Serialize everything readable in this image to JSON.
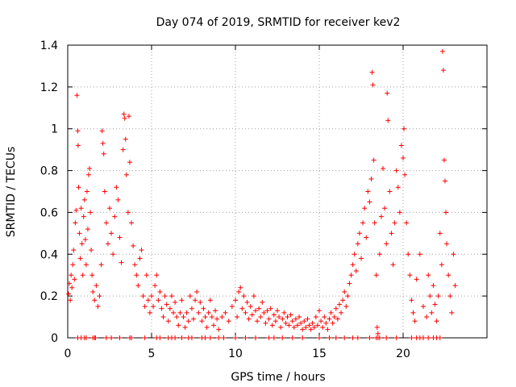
{
  "chart_data": {
    "type": "scatter",
    "title": "Day 074 of 2019, SRMTID for receiver kev2",
    "xlabel": "GPS time / hours",
    "ylabel": "SRMTID / TECUs",
    "xlim": [
      0,
      25
    ],
    "ylim": [
      0,
      1.4
    ],
    "xticks": [
      0,
      5,
      10,
      15,
      20
    ],
    "yticks": [
      0,
      0.2,
      0.4,
      0.6,
      0.8,
      1,
      1.2,
      1.4
    ],
    "xtick_labels": [
      "0",
      "5",
      "10",
      "15",
      "20"
    ],
    "ytick_labels": [
      "0",
      "0.2",
      "0.4",
      "0.6",
      "0.8",
      "1",
      "1.2",
      "1.4"
    ],
    "grid": true,
    "marker": "+",
    "colors": {
      "marker": "#ff0000",
      "grid": "#a0a0a0",
      "axis": "#000000"
    },
    "series": [
      {
        "name": "SRMTID",
        "points": [
          [
            0.05,
            0.21
          ],
          [
            0.1,
            0.26
          ],
          [
            0.15,
            0.18
          ],
          [
            0.2,
            0.3
          ],
          [
            0.25,
            0.24
          ],
          [
            0.3,
            0.35
          ],
          [
            0.35,
            0.42
          ],
          [
            0.4,
            0.28
          ],
          [
            0.45,
            0.55
          ],
          [
            0.5,
            0.61
          ],
          [
            0.55,
            1.16
          ],
          [
            0.6,
            0.99
          ],
          [
            0.62,
            0.92
          ],
          [
            0.65,
            0.72
          ],
          [
            0.7,
            0.5
          ],
          [
            0.75,
            0.38
          ],
          [
            0.8,
            0.62
          ],
          [
            0.85,
            0.45
          ],
          [
            0.9,
            0.3
          ],
          [
            0.95,
            0.58
          ],
          [
            1.0,
            0.66
          ],
          [
            1.05,
            0.47
          ],
          [
            1.1,
            0.35
          ],
          [
            1.15,
            0.7
          ],
          [
            1.2,
            0.52
          ],
          [
            1.25,
            0.78
          ],
          [
            1.3,
            0.81
          ],
          [
            1.35,
            0.6
          ],
          [
            1.4,
            0.42
          ],
          [
            1.45,
            0.3
          ],
          [
            1.5,
            0.22
          ],
          [
            1.6,
            0.18
          ],
          [
            1.7,
            0.25
          ],
          [
            1.8,
            0.15
          ],
          [
            1.9,
            0.2
          ],
          [
            2.0,
            0.35
          ],
          [
            2.05,
            0.99
          ],
          [
            2.1,
            0.93
          ],
          [
            2.15,
            0.88
          ],
          [
            2.2,
            0.7
          ],
          [
            2.3,
            0.55
          ],
          [
            2.4,
            0.45
          ],
          [
            2.5,
            0.62
          ],
          [
            2.6,
            0.5
          ],
          [
            2.7,
            0.4
          ],
          [
            2.8,
            0.58
          ],
          [
            2.9,
            0.72
          ],
          [
            3.0,
            0.66
          ],
          [
            3.1,
            0.48
          ],
          [
            3.2,
            0.36
          ],
          [
            3.3,
            0.9
          ],
          [
            3.35,
            1.07
          ],
          [
            3.4,
            1.05
          ],
          [
            3.45,
            0.95
          ],
          [
            3.5,
            0.78
          ],
          [
            3.6,
            0.6
          ],
          [
            3.65,
            1.06
          ],
          [
            3.7,
            0.84
          ],
          [
            3.8,
            0.55
          ],
          [
            3.9,
            0.44
          ],
          [
            4.0,
            0.35
          ],
          [
            4.1,
            0.3
          ],
          [
            4.2,
            0.25
          ],
          [
            4.3,
            0.38
          ],
          [
            4.4,
            0.42
          ],
          [
            4.5,
            0.2
          ],
          [
            4.6,
            0.15
          ],
          [
            4.7,
            0.3
          ],
          [
            4.8,
            0.18
          ],
          [
            4.9,
            0.12
          ],
          [
            5.0,
            0.2
          ],
          [
            5.1,
            0.15
          ],
          [
            5.2,
            0.25
          ],
          [
            5.3,
            0.3
          ],
          [
            5.4,
            0.18
          ],
          [
            5.5,
            0.22
          ],
          [
            5.6,
            0.14
          ],
          [
            5.7,
            0.1
          ],
          [
            5.8,
            0.2
          ],
          [
            5.9,
            0.16
          ],
          [
            6.0,
            0.08
          ],
          [
            6.1,
            0.14
          ],
          [
            6.2,
            0.2
          ],
          [
            6.3,
            0.12
          ],
          [
            6.4,
            0.17
          ],
          [
            6.5,
            0.1
          ],
          [
            6.6,
            0.06
          ],
          [
            6.7,
            0.12
          ],
          [
            6.8,
            0.18
          ],
          [
            6.9,
            0.1
          ],
          [
            7.0,
            0.05
          ],
          [
            7.1,
            0.12
          ],
          [
            7.2,
            0.08
          ],
          [
            7.3,
            0.2
          ],
          [
            7.4,
            0.14
          ],
          [
            7.5,
            0.09
          ],
          [
            7.6,
            0.18
          ],
          [
            7.7,
            0.22
          ],
          [
            7.8,
            0.12
          ],
          [
            7.9,
            0.17
          ],
          [
            8.0,
            0.08
          ],
          [
            8.1,
            0.14
          ],
          [
            8.2,
            0.1
          ],
          [
            8.3,
            0.05
          ],
          [
            8.4,
            0.12
          ],
          [
            8.5,
            0.18
          ],
          [
            8.6,
            0.1
          ],
          [
            8.7,
            0.06
          ],
          [
            8.8,
            0.13
          ],
          [
            8.9,
            0.09
          ],
          [
            9.0,
            0.04
          ],
          [
            9.2,
            0.1
          ],
          [
            9.4,
            0.12
          ],
          [
            9.6,
            0.08
          ],
          [
            9.8,
            0.15
          ],
          [
            10.0,
            0.18
          ],
          [
            10.1,
            0.1
          ],
          [
            10.2,
            0.22
          ],
          [
            10.3,
            0.24
          ],
          [
            10.4,
            0.14
          ],
          [
            10.5,
            0.2
          ],
          [
            10.6,
            0.12
          ],
          [
            10.7,
            0.17
          ],
          [
            10.8,
            0.09
          ],
          [
            10.9,
            0.15
          ],
          [
            11.0,
            0.11
          ],
          [
            11.1,
            0.2
          ],
          [
            11.2,
            0.13
          ],
          [
            11.3,
            0.08
          ],
          [
            11.4,
            0.14
          ],
          [
            11.5,
            0.1
          ],
          [
            11.6,
            0.17
          ],
          [
            11.7,
            0.12
          ],
          [
            11.8,
            0.07
          ],
          [
            11.9,
            0.13
          ],
          [
            12.0,
            0.09
          ],
          [
            12.1,
            0.14
          ],
          [
            12.2,
            0.06
          ],
          [
            12.3,
            0.11
          ],
          [
            12.4,
            0.08
          ],
          [
            12.5,
            0.13
          ],
          [
            12.6,
            0.1
          ],
          [
            12.7,
            0.05
          ],
          [
            12.8,
            0.09
          ],
          [
            12.9,
            0.12
          ],
          [
            13.0,
            0.07
          ],
          [
            13.1,
            0.1
          ],
          [
            13.2,
            0.06
          ],
          [
            13.3,
            0.11
          ],
          [
            13.4,
            0.08
          ],
          [
            13.5,
            0.05
          ],
          [
            13.6,
            0.09
          ],
          [
            13.7,
            0.06
          ],
          [
            13.8,
            0.1
          ],
          [
            13.9,
            0.07
          ],
          [
            14.0,
            0.04
          ],
          [
            14.1,
            0.08
          ],
          [
            14.2,
            0.05
          ],
          [
            14.3,
            0.09
          ],
          [
            14.4,
            0.06
          ],
          [
            14.5,
            0.04
          ],
          [
            14.6,
            0.07
          ],
          [
            14.7,
            0.05
          ],
          [
            14.8,
            0.1
          ],
          [
            14.9,
            0.06
          ],
          [
            15.0,
            0.13
          ],
          [
            15.1,
            0.08
          ],
          [
            15.2,
            0.05
          ],
          [
            15.3,
            0.1
          ],
          [
            15.4,
            0.07
          ],
          [
            15.5,
            0.04
          ],
          [
            15.6,
            0.09
          ],
          [
            15.7,
            0.12
          ],
          [
            15.8,
            0.07
          ],
          [
            15.9,
            0.1
          ],
          [
            16.0,
            0.14
          ],
          [
            16.1,
            0.09
          ],
          [
            16.2,
            0.16
          ],
          [
            16.3,
            0.12
          ],
          [
            16.4,
            0.18
          ],
          [
            16.5,
            0.22
          ],
          [
            16.6,
            0.15
          ],
          [
            16.7,
            0.2
          ],
          [
            16.8,
            0.26
          ],
          [
            16.9,
            0.3
          ],
          [
            17.0,
            0.35
          ],
          [
            17.1,
            0.4
          ],
          [
            17.2,
            0.32
          ],
          [
            17.3,
            0.45
          ],
          [
            17.4,
            0.5
          ],
          [
            17.5,
            0.38
          ],
          [
            17.6,
            0.55
          ],
          [
            17.7,
            0.62
          ],
          [
            17.8,
            0.48
          ],
          [
            17.9,
            0.7
          ],
          [
            18.0,
            0.65
          ],
          [
            18.1,
            0.76
          ],
          [
            18.15,
            1.27
          ],
          [
            18.2,
            1.21
          ],
          [
            18.25,
            0.85
          ],
          [
            18.3,
            0.55
          ],
          [
            18.4,
            0.3
          ],
          [
            18.45,
            0.05
          ],
          [
            18.5,
            0.02
          ],
          [
            18.6,
            0.4
          ],
          [
            18.7,
            0.58
          ],
          [
            18.8,
            0.81
          ],
          [
            18.9,
            0.62
          ],
          [
            19.0,
            0.45
          ],
          [
            19.05,
            1.17
          ],
          [
            19.1,
            1.04
          ],
          [
            19.2,
            0.7
          ],
          [
            19.3,
            0.5
          ],
          [
            19.4,
            0.35
          ],
          [
            19.5,
            0.55
          ],
          [
            19.6,
            0.8
          ],
          [
            19.7,
            0.72
          ],
          [
            19.8,
            0.6
          ],
          [
            19.9,
            0.92
          ],
          [
            20.0,
            0.86
          ],
          [
            20.05,
            1.0
          ],
          [
            20.1,
            0.78
          ],
          [
            20.2,
            0.55
          ],
          [
            20.3,
            0.4
          ],
          [
            20.4,
            0.3
          ],
          [
            20.5,
            0.18
          ],
          [
            20.6,
            0.12
          ],
          [
            20.7,
            0.08
          ],
          [
            20.8,
            0.28
          ],
          [
            21.0,
            0.4
          ],
          [
            21.2,
            0.15
          ],
          [
            21.4,
            0.1
          ],
          [
            21.5,
            0.3
          ],
          [
            21.6,
            0.2
          ],
          [
            21.7,
            0.12
          ],
          [
            21.8,
            0.25
          ],
          [
            21.9,
            0.16
          ],
          [
            22.0,
            0.08
          ],
          [
            22.1,
            0.2
          ],
          [
            22.2,
            0.5
          ],
          [
            22.3,
            0.35
          ],
          [
            22.35,
            1.37
          ],
          [
            22.4,
            1.28
          ],
          [
            22.45,
            0.85
          ],
          [
            22.5,
            0.75
          ],
          [
            22.55,
            0.6
          ],
          [
            22.6,
            0.45
          ],
          [
            22.7,
            0.3
          ],
          [
            22.8,
            0.2
          ],
          [
            22.9,
            0.12
          ],
          [
            23.0,
            0.4
          ],
          [
            23.1,
            0.25
          ]
        ],
        "zero_points": [
          0.6,
          0.8,
          1.0,
          1.1,
          1.5,
          1.6,
          1.65,
          2.3,
          2.6,
          3.1,
          3.7,
          3.8,
          4.6,
          5.3,
          5.5,
          6.0,
          6.2,
          6.4,
          6.8,
          7.2,
          7.4,
          8.0,
          8.2,
          8.5,
          9.0,
          9.3,
          10.0,
          10.6,
          11.2,
          12.0,
          12.3,
          12.8,
          13.4,
          14.0,
          15.0,
          15.6,
          16.0,
          16.5,
          17.0,
          17.3,
          18.0,
          18.4,
          18.5,
          18.6,
          19.0,
          19.6,
          20.5,
          20.8,
          21.0,
          21.2,
          21.5,
          21.8,
          22.0,
          22.2
        ]
      }
    ]
  }
}
